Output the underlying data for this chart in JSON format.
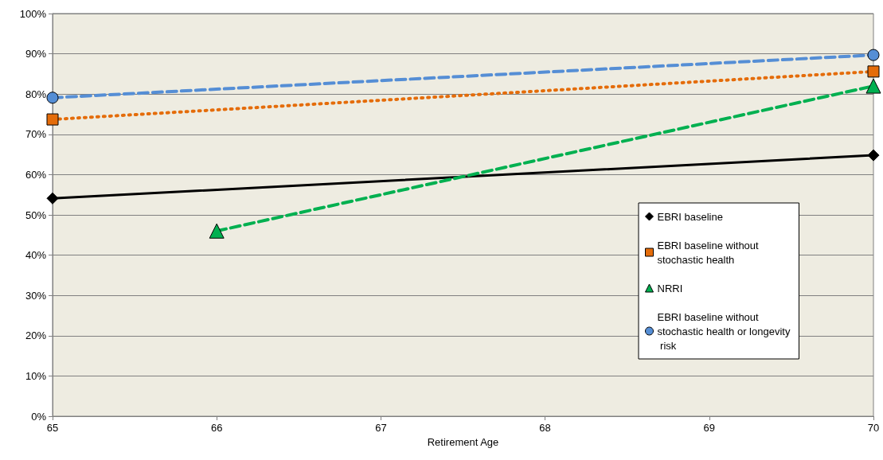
{
  "chart_data": {
    "type": "line",
    "xlabel": "Retirement Age",
    "xlim": [
      65,
      70
    ],
    "xticks": [
      65,
      66,
      67,
      68,
      69,
      70
    ],
    "ylim": [
      0,
      100
    ],
    "yticks": [
      {
        "value": 0,
        "label": "0%"
      },
      {
        "value": 10,
        "label": "10%"
      },
      {
        "value": 20,
        "label": "20%"
      },
      {
        "value": 30,
        "label": "30%"
      },
      {
        "value": 40,
        "label": "40%"
      },
      {
        "value": 50,
        "label": "50%"
      },
      {
        "value": 60,
        "label": "60%"
      },
      {
        "value": 70,
        "label": "70%"
      },
      {
        "value": 80,
        "label": "80%"
      },
      {
        "value": 90,
        "label": "90%"
      },
      {
        "value": 100,
        "label": "100%"
      }
    ],
    "grid": "y",
    "legend": "right",
    "series": [
      {
        "name": "EBRI baseline",
        "color": "#000000",
        "x": [
          65,
          70
        ],
        "values": [
          54.1,
          64.8
        ],
        "marker": "diamond",
        "line_style": "solid"
      },
      {
        "name": "EBRI baseline without stochastic health",
        "color": "#e46c0a",
        "x": [
          65,
          70
        ],
        "values": [
          73.7,
          85.6
        ],
        "marker": "square",
        "line_style": "dotted"
      },
      {
        "name": "NRRI",
        "color": "#00b050",
        "x": [
          66,
          70
        ],
        "values": [
          46.0,
          82.0
        ],
        "marker": "triangle",
        "line_style": "dashed"
      },
      {
        "name": "EBRI baseline without stochastic health or longevity risk",
        "color": "#558ed5",
        "x": [
          65,
          70
        ],
        "values": [
          79.1,
          89.7
        ],
        "marker": "circle",
        "line_style": "dashed"
      }
    ]
  }
}
